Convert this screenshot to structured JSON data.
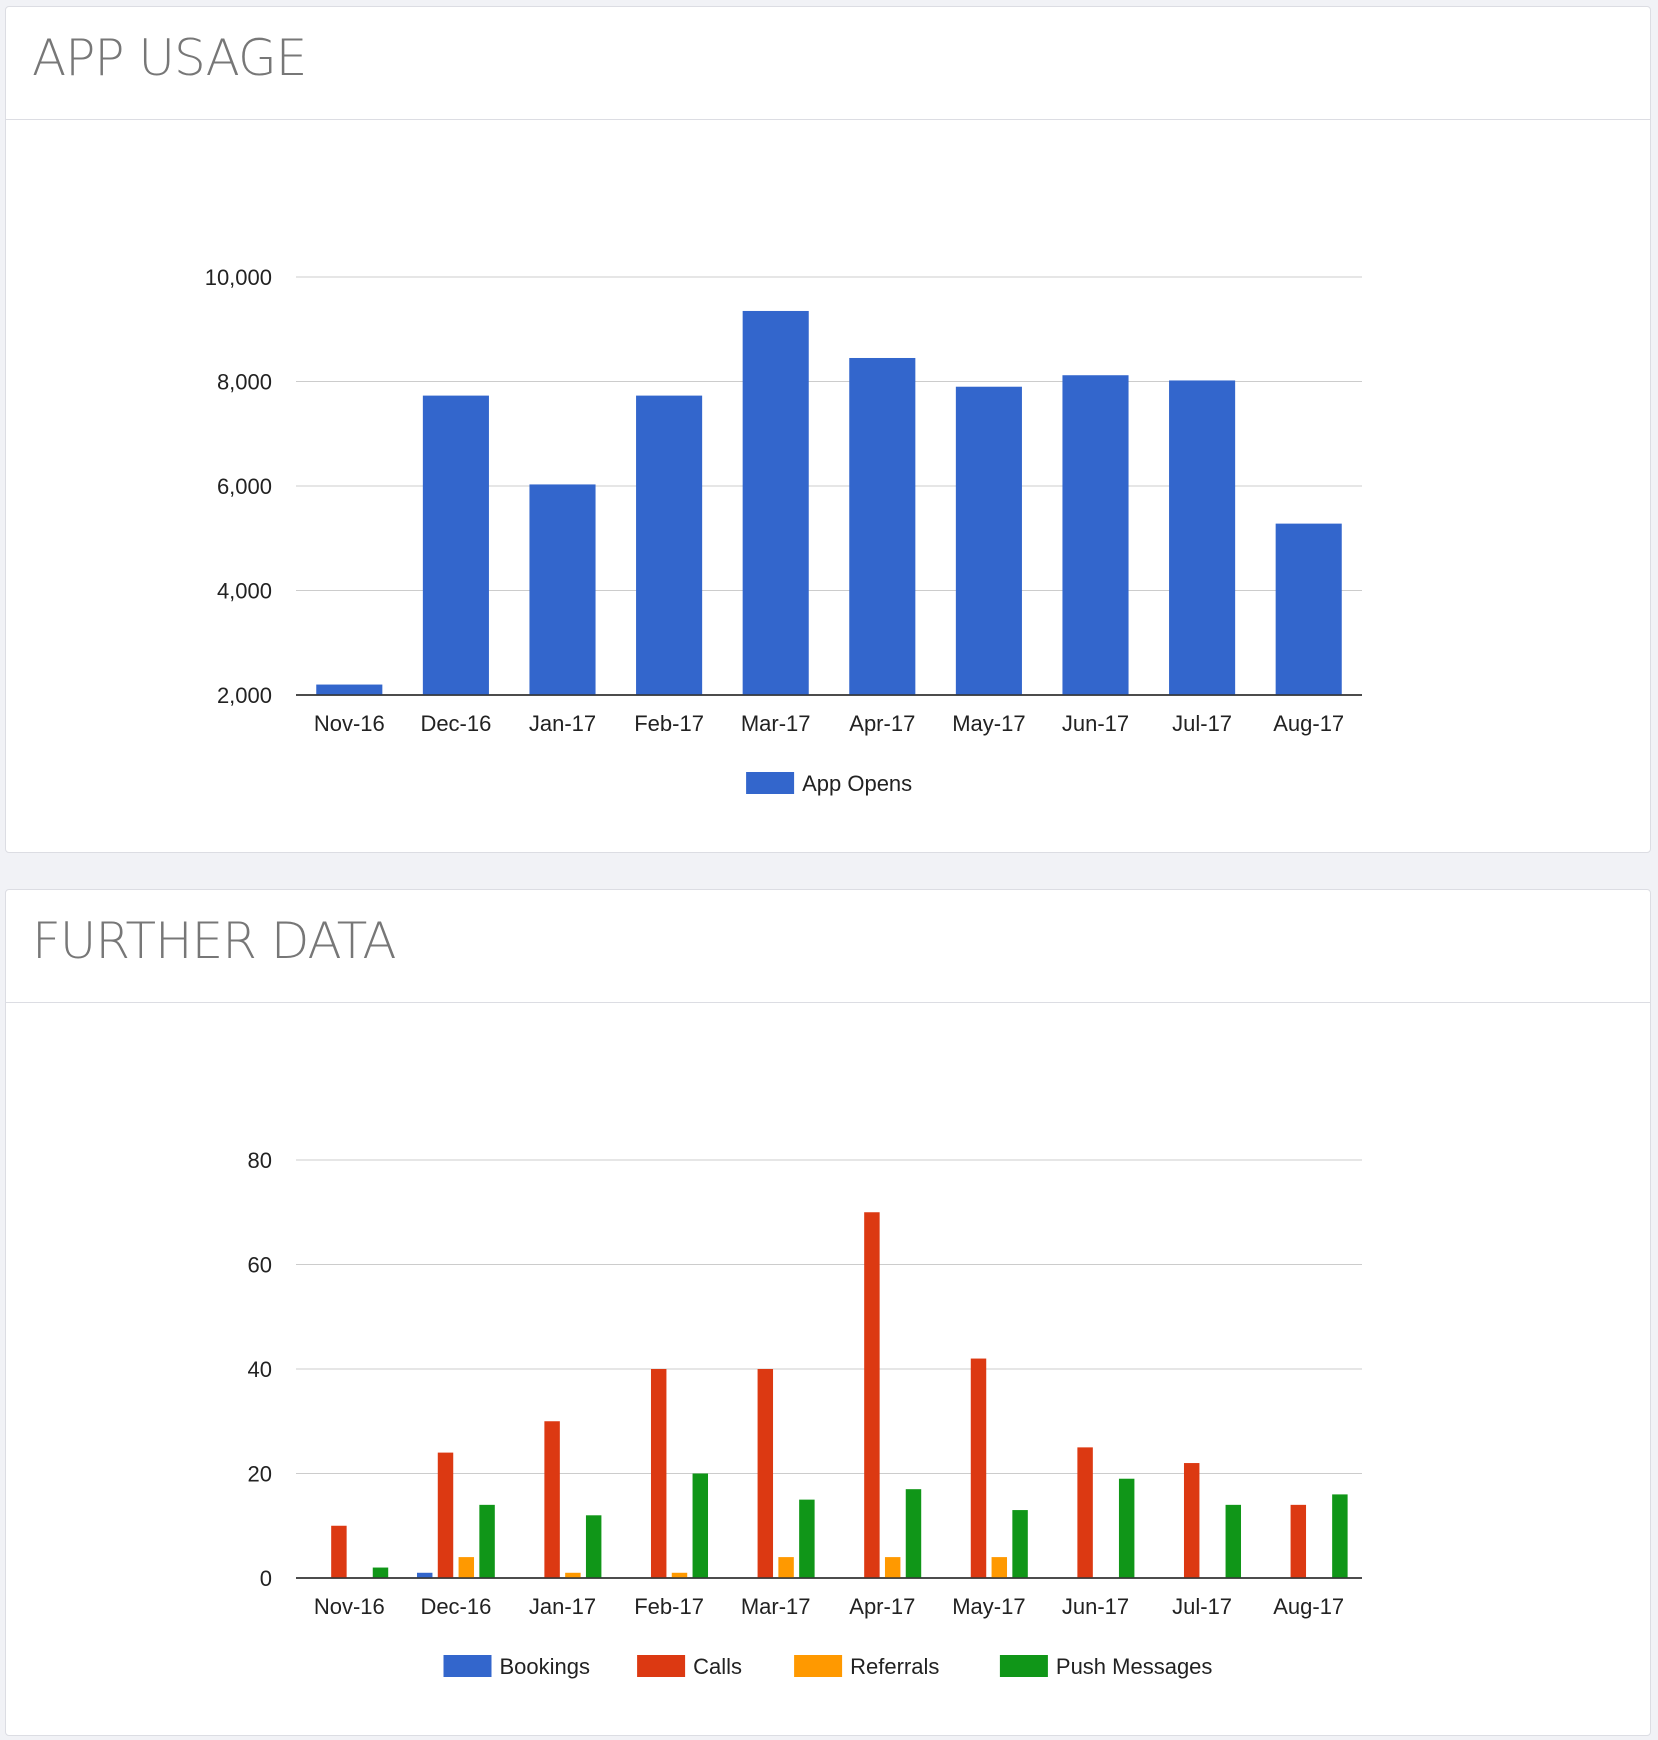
{
  "colors": {
    "bookings": "#3366cc",
    "calls": "#dc3912",
    "referrals": "#ff9900",
    "push_messages": "#109618",
    "gridline": "#cccccc",
    "baseline": "#333333",
    "tick_text": "#222222",
    "title_text": "#777777"
  },
  "panels": {
    "usage": {
      "title": "APP USAGE"
    },
    "further": {
      "title": "FURTHER DATA"
    }
  },
  "chart_data": [
    {
      "type": "bar",
      "title": "",
      "xlabel": "",
      "ylabel": "",
      "categories": [
        "Nov-16",
        "Dec-16",
        "Jan-17",
        "Feb-17",
        "Mar-17",
        "Apr-17",
        "May-17",
        "Jun-17",
        "Jul-17",
        "Aug-17"
      ],
      "series": [
        {
          "name": "App Opens",
          "color": "#3366cc",
          "values": [
            2200,
            7730,
            6030,
            7730,
            9350,
            8450,
            7900,
            8120,
            8020,
            5280
          ]
        }
      ],
      "ylim": [
        2000,
        10000
      ],
      "yticks": [
        2000,
        4000,
        6000,
        8000,
        10000
      ],
      "ytick_labels": [
        "2,000",
        "4,000",
        "6,000",
        "8,000",
        "10,000"
      ],
      "grid": true,
      "legend": "bottom"
    },
    {
      "type": "bar",
      "title": "",
      "xlabel": "",
      "ylabel": "",
      "categories": [
        "Nov-16",
        "Dec-16",
        "Jan-17",
        "Feb-17",
        "Mar-17",
        "Apr-17",
        "May-17",
        "Jun-17",
        "Jul-17",
        "Aug-17"
      ],
      "series": [
        {
          "name": "Bookings",
          "color": "#3366cc",
          "values": [
            0,
            1,
            0,
            0,
            0,
            0,
            0,
            0,
            0,
            0
          ]
        },
        {
          "name": "Calls",
          "color": "#dc3912",
          "values": [
            10,
            24,
            30,
            40,
            40,
            70,
            42,
            25,
            22,
            14
          ]
        },
        {
          "name": "Referrals",
          "color": "#ff9900",
          "values": [
            0,
            4,
            1,
            1,
            4,
            4,
            4,
            0,
            0,
            0
          ]
        },
        {
          "name": "Push Messages",
          "color": "#109618",
          "values": [
            2,
            14,
            12,
            20,
            15,
            17,
            13,
            19,
            14,
            16
          ]
        }
      ],
      "ylim": [
        0,
        80
      ],
      "yticks": [
        0,
        20,
        40,
        60,
        80
      ],
      "ytick_labels": [
        "0",
        "20",
        "40",
        "60",
        "80"
      ],
      "grid": true,
      "legend": "bottom"
    }
  ]
}
